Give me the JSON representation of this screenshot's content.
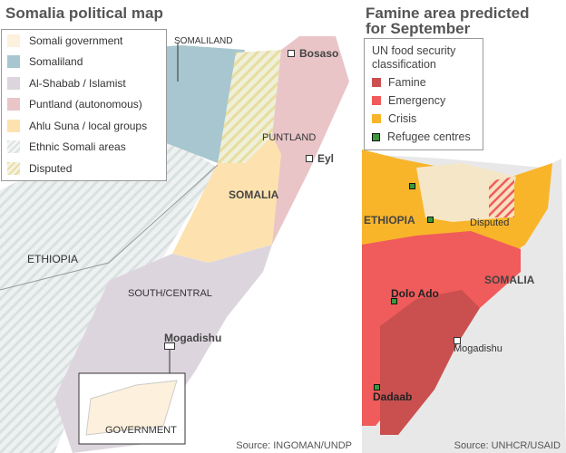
{
  "left": {
    "title": "Somalia political map",
    "legend": [
      {
        "label": "Somali government",
        "color": "#fdf0dc"
      },
      {
        "label": "Somaliland",
        "color": "#a8c6cf"
      },
      {
        "label": "Al-Shabab / Islamist",
        "color": "#ddd5de"
      },
      {
        "label": "Puntland (autonomous)",
        "color": "#e9c5c8"
      },
      {
        "label": "Ahlu Suna / local groups",
        "color": "#fde2b0"
      },
      {
        "label": "Ethnic Somali areas",
        "pattern": "grey-hatch"
      },
      {
        "label": "Disputed",
        "pattern": "yellow-hatch"
      }
    ],
    "labels": {
      "somaliland": "SOMALILAND",
      "bosaso": "Bosaso",
      "puntland": "PUNTLAND",
      "eyl": "Eyl",
      "somalia": "SOMALIA",
      "ethiopia": "ETHIOPIA",
      "south_central": "SOUTH/CENTRAL",
      "mogadishu": "Mogadishu",
      "government": "GOVERNMENT"
    },
    "source": "Source: INGOMAN/UNDP"
  },
  "right": {
    "title_line1": "Famine area predicted",
    "title_line2": "for September",
    "legend_title_line1": "UN food security",
    "legend_title_line2": "classification",
    "legend": [
      {
        "label": "Famine",
        "color": "#c9504f"
      },
      {
        "label": "Emergency",
        "color": "#f05b5b"
      },
      {
        "label": "Crisis",
        "color": "#f8b52a"
      },
      {
        "label": "Refugee centres",
        "color": "#3a9a3a"
      }
    ],
    "labels": {
      "ethiopia": "ETHIOPIA",
      "disputed": "Disputed",
      "somalia": "SOMALIA",
      "dolo_ado": "Dolo Ado",
      "mogadishu": "Mogadishu",
      "dadaab": "Dadaab"
    },
    "source": "Source: UNHCR/USAID"
  }
}
